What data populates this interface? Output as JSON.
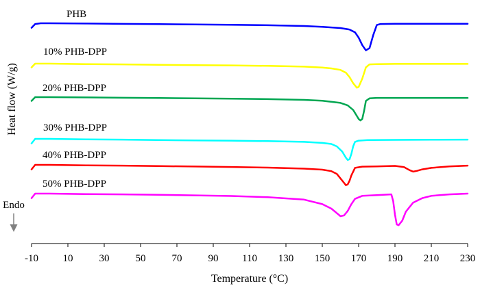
{
  "chart_data": {
    "type": "line",
    "title": "",
    "xlabel": "Temperature (°C)",
    "ylabel": "Heat flow (W/g)",
    "endo_label": "Endo",
    "xlim": [
      -10,
      230
    ],
    "xticks": [
      -10,
      10,
      30,
      50,
      70,
      90,
      110,
      130,
      150,
      170,
      190,
      210,
      230
    ],
    "grid": false,
    "legend": "inline labels above each curve",
    "series": [
      {
        "name": "PHB",
        "color": "#0000FF",
        "x": [
          -10,
          -8,
          -5,
          0,
          20,
          40,
          60,
          80,
          100,
          120,
          140,
          150,
          160,
          165,
          168,
          170,
          172,
          174,
          176,
          178,
          180,
          182,
          190,
          210,
          230
        ],
        "y": [
          -0.3,
          -0.05,
          0,
          0,
          -0.02,
          -0.04,
          -0.06,
          -0.08,
          -0.1,
          -0.13,
          -0.18,
          -0.24,
          -0.32,
          -0.42,
          -0.6,
          -0.95,
          -1.45,
          -1.8,
          -1.65,
          -0.8,
          -0.12,
          -0.05,
          -0.03,
          -0.03,
          -0.03
        ]
      },
      {
        "name": "10% PHB-DPP",
        "color": "#FFFF00",
        "x": [
          -10,
          -8,
          -5,
          0,
          20,
          40,
          60,
          80,
          100,
          120,
          140,
          150,
          155,
          160,
          163,
          165,
          167,
          169,
          170,
          172,
          174,
          176,
          180,
          190,
          210,
          230
        ],
        "y": [
          -0.25,
          0,
          0,
          0,
          -0.03,
          -0.05,
          -0.08,
          -0.1,
          -0.12,
          -0.15,
          -0.2,
          -0.26,
          -0.32,
          -0.42,
          -0.6,
          -0.9,
          -1.3,
          -1.6,
          -1.55,
          -1.0,
          -0.25,
          -0.05,
          -0.03,
          -0.02,
          -0.02,
          -0.02
        ]
      },
      {
        "name": "20% PHB-DPP",
        "color": "#00A651",
        "x": [
          -10,
          -8,
          -5,
          0,
          20,
          40,
          60,
          80,
          100,
          120,
          140,
          150,
          160,
          164,
          167,
          169,
          170,
          171,
          172,
          173,
          174,
          176,
          180,
          190,
          210,
          230
        ],
        "y": [
          -0.25,
          0,
          0,
          0,
          -0.02,
          -0.04,
          -0.06,
          -0.08,
          -0.1,
          -0.13,
          -0.18,
          -0.24,
          -0.38,
          -0.55,
          -0.85,
          -1.25,
          -1.45,
          -1.55,
          -1.45,
          -0.9,
          -0.25,
          -0.08,
          -0.05,
          -0.05,
          -0.05,
          -0.05
        ]
      },
      {
        "name": "30% PHB-DPP",
        "color": "#00FFFF",
        "x": [
          -10,
          -8,
          -5,
          0,
          20,
          40,
          60,
          80,
          100,
          120,
          140,
          150,
          155,
          158,
          161,
          163,
          164,
          165,
          166,
          167,
          168,
          170,
          175,
          190,
          210,
          230
        ],
        "y": [
          -0.3,
          0,
          0,
          0,
          -0.03,
          -0.05,
          -0.08,
          -0.1,
          -0.12,
          -0.15,
          -0.2,
          -0.27,
          -0.34,
          -0.5,
          -0.85,
          -1.25,
          -1.4,
          -1.35,
          -1.0,
          -0.5,
          -0.2,
          -0.12,
          -0.08,
          -0.07,
          -0.06,
          -0.05
        ]
      },
      {
        "name": "40% PHB-DPP",
        "color": "#FF0000",
        "x": [
          -10,
          -8,
          -5,
          0,
          20,
          40,
          60,
          80,
          100,
          120,
          140,
          150,
          155,
          158,
          160,
          162,
          163,
          164,
          165,
          166,
          168,
          172,
          180,
          190,
          195,
          198,
          200,
          202,
          205,
          210,
          220,
          230
        ],
        "y": [
          -0.3,
          0,
          0,
          0,
          -0.03,
          -0.05,
          -0.08,
          -0.11,
          -0.14,
          -0.18,
          -0.25,
          -0.32,
          -0.42,
          -0.6,
          -0.9,
          -1.2,
          -1.35,
          -1.3,
          -1.05,
          -0.7,
          -0.2,
          -0.12,
          -0.1,
          -0.07,
          -0.15,
          -0.35,
          -0.45,
          -0.4,
          -0.3,
          -0.2,
          -0.1,
          -0.05
        ]
      },
      {
        "name": "50% PHB-DPP",
        "color": "#FF00FF",
        "x": [
          -10,
          -8,
          -5,
          0,
          20,
          40,
          60,
          80,
          100,
          120,
          140,
          150,
          155,
          158,
          160,
          162,
          164,
          166,
          168,
          172,
          180,
          188,
          189,
          190,
          191,
          192,
          194,
          196,
          200,
          205,
          210,
          220,
          230
        ],
        "y": [
          -0.3,
          0,
          0,
          0,
          -0.03,
          -0.05,
          -0.08,
          -0.12,
          -0.16,
          -0.24,
          -0.4,
          -0.7,
          -1.0,
          -1.3,
          -1.5,
          -1.45,
          -1.15,
          -0.7,
          -0.35,
          -0.15,
          -0.1,
          -0.05,
          -0.5,
          -1.4,
          -2.05,
          -2.1,
          -1.8,
          -1.2,
          -0.6,
          -0.3,
          -0.15,
          -0.05,
          0
        ]
      }
    ]
  }
}
